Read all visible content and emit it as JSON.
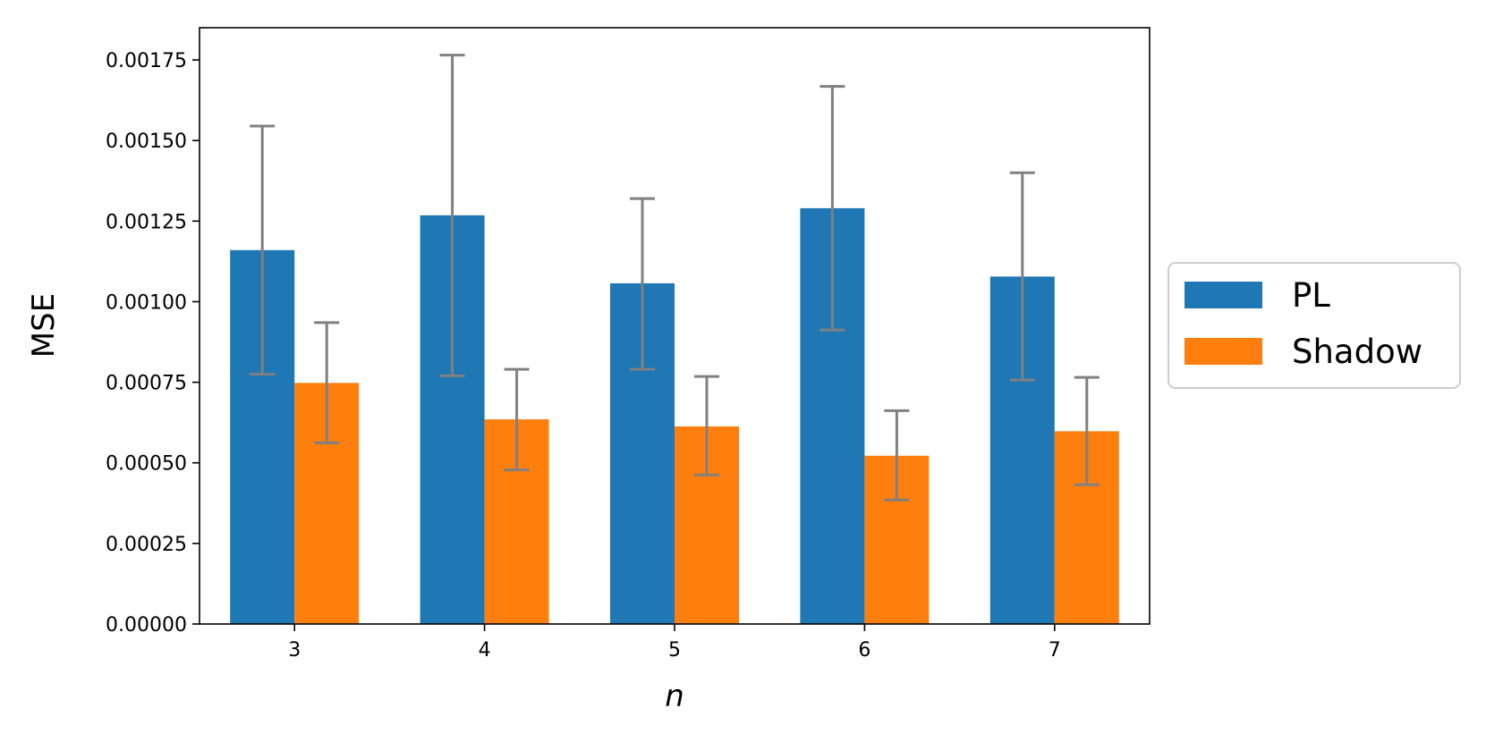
{
  "chart_data": {
    "type": "bar",
    "categories": [
      "3",
      "4",
      "5",
      "6",
      "7"
    ],
    "series": [
      {
        "name": "PL",
        "color": "#1f77b4",
        "values": [
          0.00116,
          0.001268,
          0.001057,
          0.00129,
          0.001078
        ],
        "err_low": [
          0.000775,
          0.00077,
          0.00079,
          0.000912,
          0.000757
        ],
        "err_high": [
          0.001545,
          0.001765,
          0.00132,
          0.001668,
          0.0014
        ]
      },
      {
        "name": "Shadow",
        "color": "#ff7f0e",
        "values": [
          0.000748,
          0.000635,
          0.000613,
          0.000522,
          0.000598
        ],
        "err_low": [
          0.000562,
          0.000478,
          0.000462,
          0.000385,
          0.000432
        ],
        "err_high": [
          0.000935,
          0.00079,
          0.000768,
          0.000662,
          0.000765
        ]
      }
    ],
    "yticks": [
      "0.00000",
      "0.00025",
      "0.00050",
      "0.00075",
      "0.00100",
      "0.00125",
      "0.00150",
      "0.00175"
    ],
    "ytick_values": [
      0,
      0.00025,
      0.0005,
      0.00075,
      0.001,
      0.00125,
      0.0015,
      0.00175
    ],
    "ylim": [
      0,
      0.00185
    ],
    "xlabel": "n",
    "ylabel": "MSE",
    "grid": false,
    "legend_position": "right",
    "error_bar_color": "#808080"
  }
}
